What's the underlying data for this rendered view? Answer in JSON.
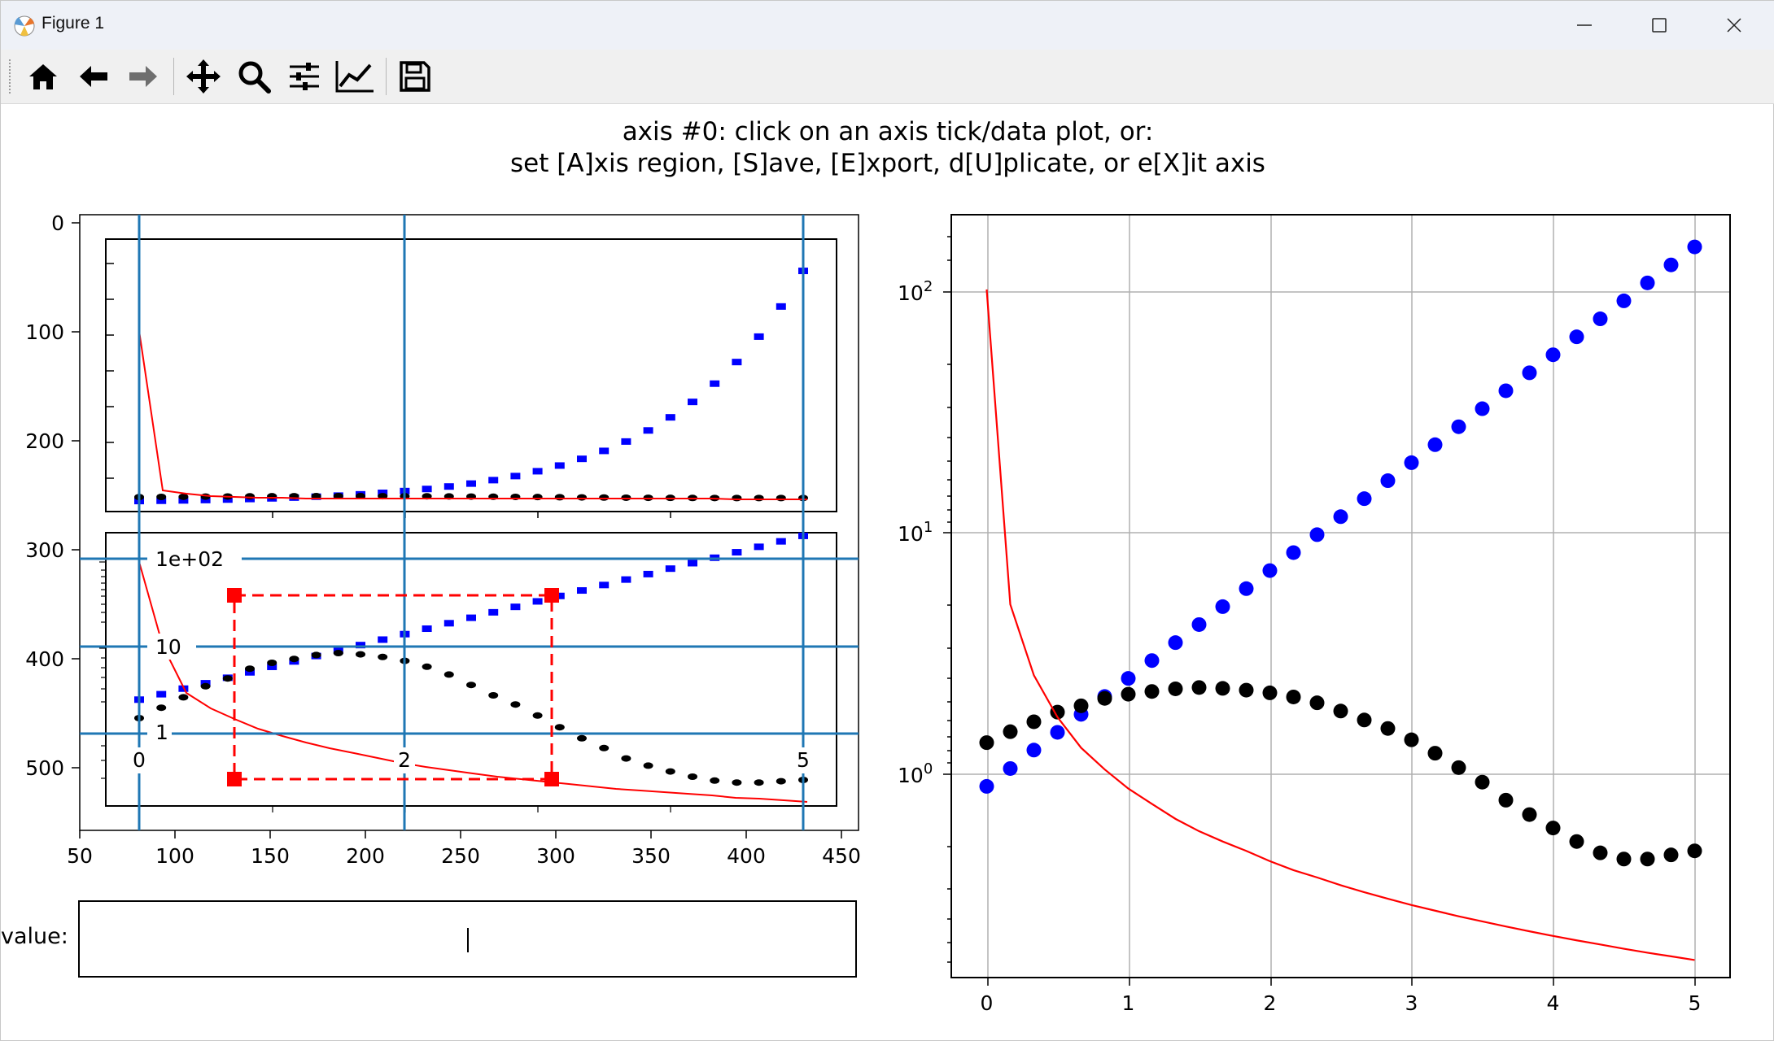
{
  "window": {
    "title": "Figure 1"
  },
  "toolbar": {
    "buttons": [
      {
        "name": "home",
        "icon": "home-icon"
      },
      {
        "name": "back",
        "icon": "arrow-left-icon"
      },
      {
        "name": "forward",
        "icon": "arrow-right-icon"
      },
      {
        "name": "pan",
        "icon": "move-icon"
      },
      {
        "name": "zoom",
        "icon": "magnifier-icon"
      },
      {
        "name": "subplots",
        "icon": "sliders-icon"
      },
      {
        "name": "customize",
        "icon": "chart-line-icon"
      },
      {
        "name": "save",
        "icon": "floppy-disk-icon"
      }
    ]
  },
  "header": {
    "line1": "axis #0: click on an axis tick/data plot, or:",
    "line2": "set [A]xis region, [S]ave, [E]xport, d[U]plicate, or e[X]it axis"
  },
  "left_axes": {
    "x_ticks": [
      "50",
      "100",
      "150",
      "200",
      "250",
      "300",
      "350",
      "400",
      "450"
    ],
    "y_ticks": [
      "0",
      "100",
      "200",
      "300",
      "400",
      "500"
    ],
    "guide_labels_x": [
      "0",
      "2",
      "5"
    ],
    "guide_labels_y": [
      "1e+02",
      "10",
      "1"
    ]
  },
  "value_field": {
    "label": "value:",
    "value": ""
  },
  "colors": {
    "blue_series": "#0000ff",
    "black_series": "#000000",
    "red_series": "#ff0000",
    "guide": "#1f77b4",
    "selection": "#ff0000",
    "grid": "#b0b0b0"
  },
  "chart_data": {
    "type": "scatter",
    "xlim": [
      -0.25,
      5.25
    ],
    "ylim": [
      0.17,
      200
    ],
    "y_scale": "log",
    "x_ticks": [
      "0",
      "1",
      "2",
      "3",
      "4",
      "5"
    ],
    "y_ticks": [
      "10^0",
      "10^1",
      "10^2"
    ],
    "grid": true,
    "x": [
      0,
      0.1667,
      0.3333,
      0.5,
      0.6667,
      0.8333,
      1.0,
      1.1667,
      1.3333,
      1.5,
      1.6667,
      1.8333,
      2.0,
      2.1667,
      2.3333,
      2.5,
      2.6667,
      2.8333,
      3.0,
      3.1667,
      3.3333,
      3.5,
      3.6667,
      3.8333,
      4.0,
      4.1667,
      4.3333,
      4.5,
      4.6667,
      4.8333,
      5.0
    ],
    "series": [
      {
        "style": "markers",
        "color": "#0000ff",
        "values": [
          1.0,
          1.18,
          1.4,
          1.65,
          1.95,
          2.3,
          2.72,
          3.21,
          3.79,
          4.48,
          5.29,
          6.25,
          7.39,
          8.73,
          10.31,
          12.18,
          14.39,
          17.0,
          20.09,
          23.73,
          28.03,
          33.12,
          39.12,
          46.21,
          54.6,
          64.5,
          76.19,
          90.02,
          106.3,
          125.6,
          148.4
        ]
      },
      {
        "style": "markers",
        "color": "#000000",
        "values": [
          1.5,
          1.66,
          1.82,
          1.99,
          2.11,
          2.26,
          2.35,
          2.41,
          2.47,
          2.5,
          2.48,
          2.44,
          2.38,
          2.29,
          2.17,
          2.01,
          1.85,
          1.71,
          1.54,
          1.36,
          1.19,
          1.04,
          0.88,
          0.77,
          0.68,
          0.6,
          0.54,
          0.51,
          0.51,
          0.53,
          0.55
        ]
      },
      {
        "style": "line",
        "color": "#ff0000",
        "values": [
          100,
          5.4,
          2.8,
          1.9,
          1.43,
          1.17,
          0.98,
          0.85,
          0.74,
          0.66,
          0.6,
          0.55,
          0.5,
          0.46,
          0.43,
          0.4,
          0.375,
          0.353,
          0.333,
          0.316,
          0.3,
          0.286,
          0.273,
          0.261,
          0.25,
          0.24,
          0.231,
          0.222,
          0.214,
          0.207,
          0.2
        ]
      }
    ]
  }
}
